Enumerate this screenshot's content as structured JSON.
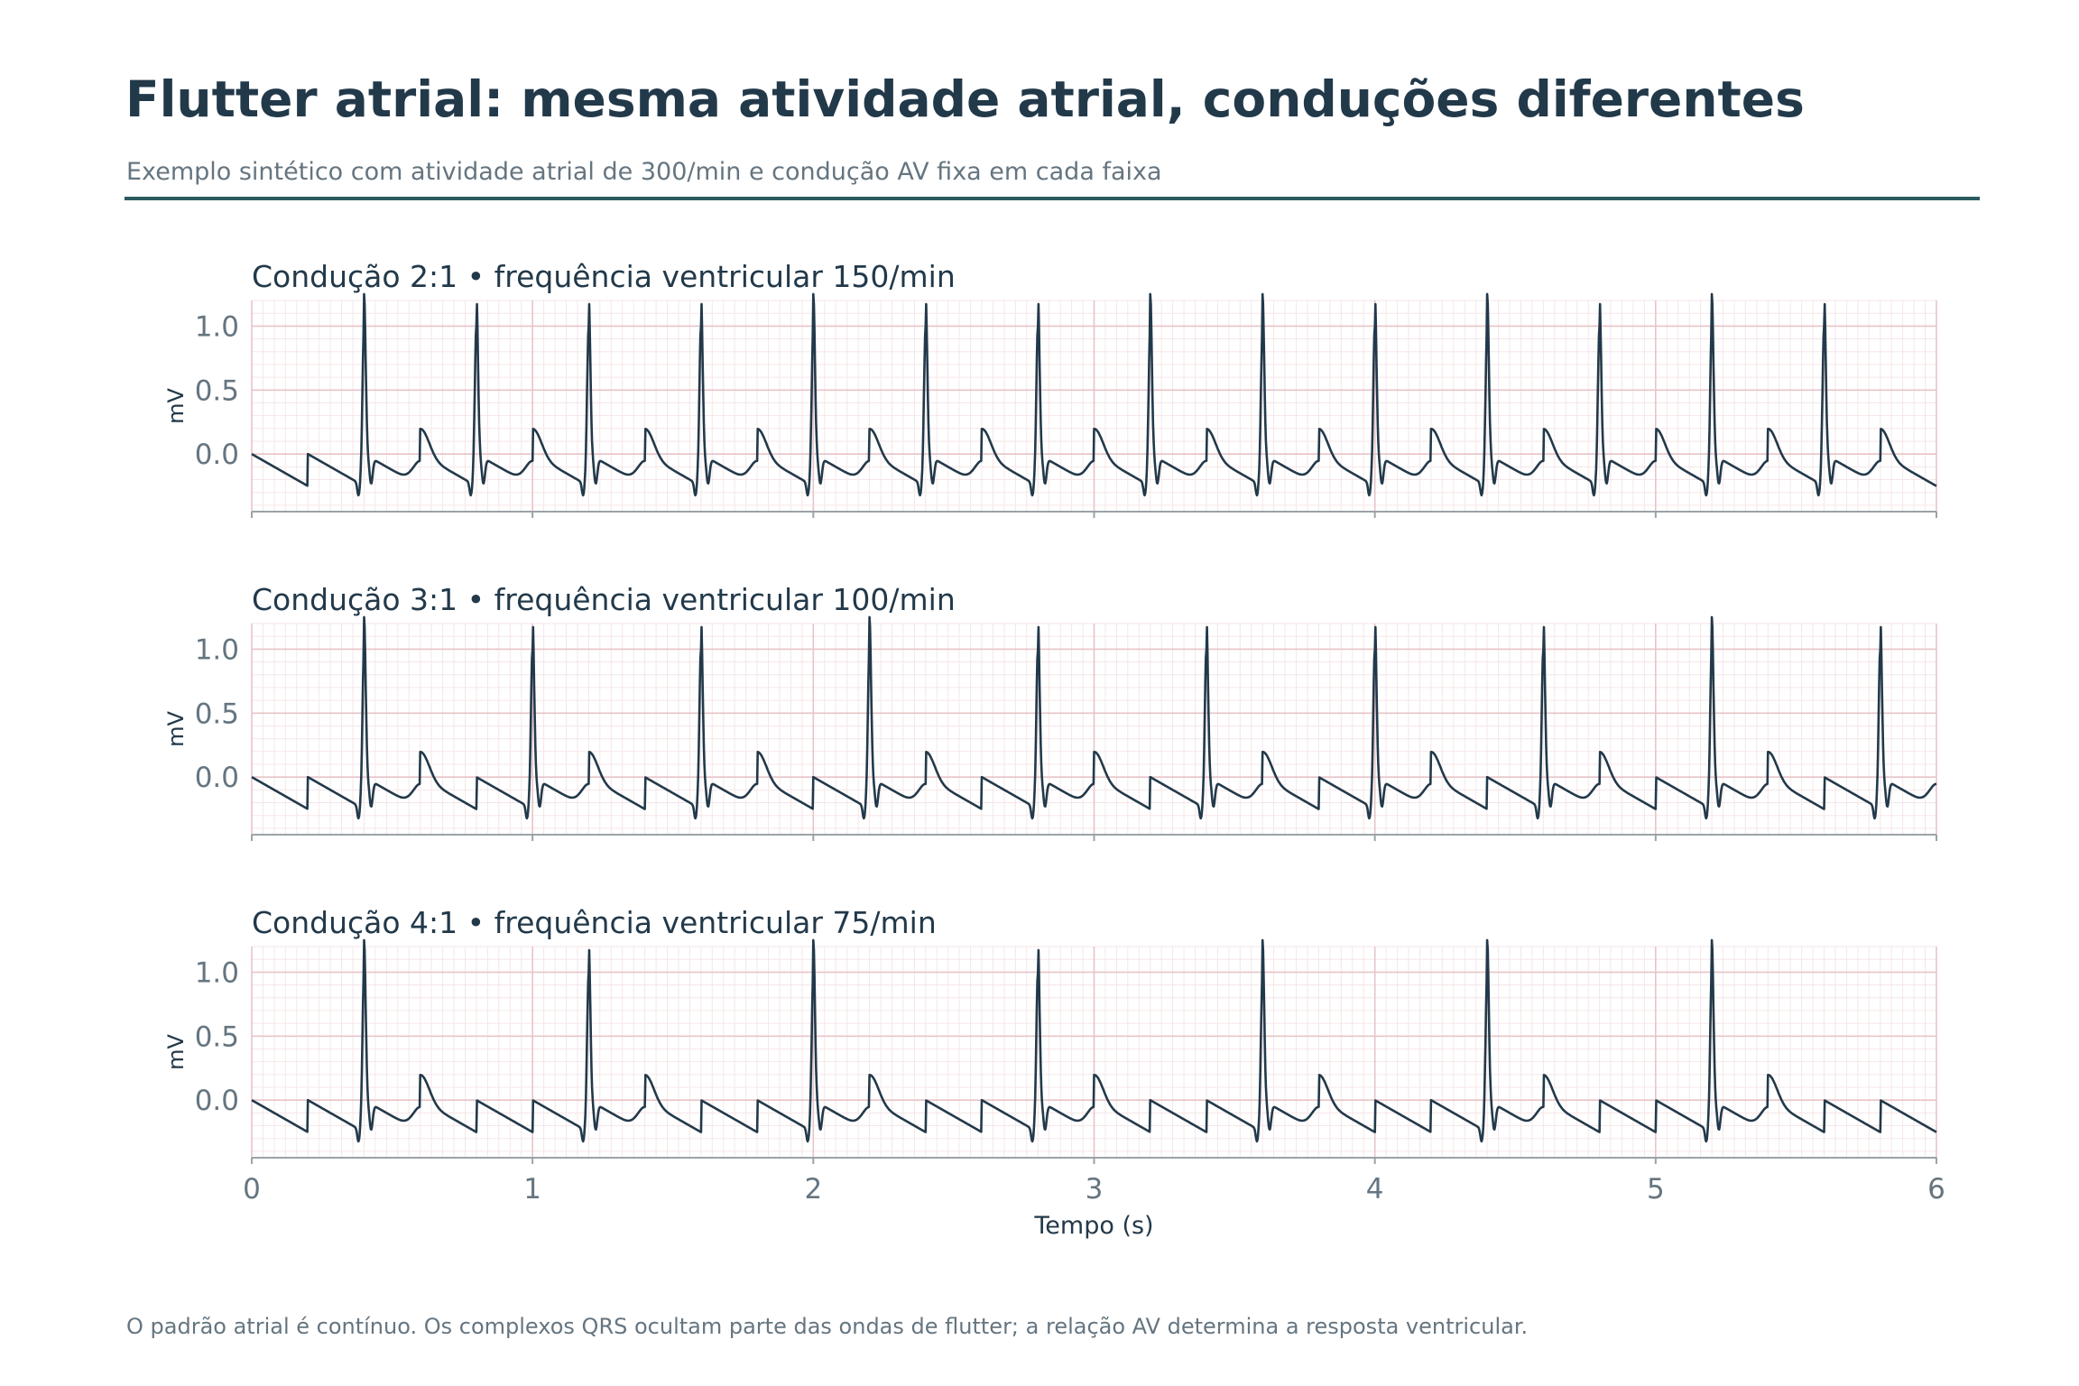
{
  "title": "Flutter atrial: mesma atividade atrial, conduções diferentes",
  "subtitle": "Exemplo sintético com atividade atrial de 300/min e condução AV fixa em cada faixa",
  "footer": "O padrão atrial é contínuo. Os complexos QRS ocultam parte das ondas de flutter; a relação AV determina a resposta ventricular.",
  "colors": {
    "trace": "#22394a",
    "major_grid": "#e8c4c8",
    "minor_grid": "#f6e6e8",
    "axis": "#9aa3a8",
    "tick_label": "#657580",
    "title_text": "#22394a",
    "rule": "#2b5a60"
  },
  "chart_data": [
    {
      "type": "line",
      "title": "Condução 2:1  •  frequência ventricular 150/min",
      "conduction": "2:1",
      "ventricular_rate_bpm": 150,
      "atrial_rate_bpm": 300,
      "ylabel": "mV",
      "xlim": [
        0,
        6
      ],
      "ylim": [
        -0.45,
        1.2
      ],
      "yticks": [
        "1.0",
        "0.5",
        "0.0"
      ],
      "qrs_times_s": [
        0.4,
        0.8,
        1.2,
        1.6,
        2.0,
        2.4,
        2.8,
        3.2,
        3.6,
        4.0,
        4.4,
        4.8,
        5.2,
        5.6
      ],
      "grid": true
    },
    {
      "type": "line",
      "title": "Condução 3:1  •  frequência ventricular 100/min",
      "conduction": "3:1",
      "ventricular_rate_bpm": 100,
      "atrial_rate_bpm": 300,
      "ylabel": "mV",
      "xlim": [
        0,
        6
      ],
      "ylim": [
        -0.45,
        1.2
      ],
      "yticks": [
        "1.0",
        "0.5",
        "0.0"
      ],
      "qrs_times_s": [
        0.4,
        1.0,
        1.6,
        2.2,
        2.8,
        3.4,
        4.0,
        4.6,
        5.2,
        5.8
      ],
      "grid": true
    },
    {
      "type": "line",
      "title": "Condução 4:1  •  frequência ventricular 75/min",
      "conduction": "4:1",
      "ventricular_rate_bpm": 75,
      "atrial_rate_bpm": 300,
      "ylabel": "mV",
      "xlim": [
        0,
        6
      ],
      "ylim": [
        -0.45,
        1.2
      ],
      "yticks": [
        "1.0",
        "0.5",
        "0.0"
      ],
      "qrs_times_s": [
        0.4,
        1.2,
        2.0,
        2.8,
        3.6,
        4.4,
        5.2
      ],
      "grid": true,
      "xlabel": "Tempo (s)",
      "xticks": [
        "0",
        "1",
        "2",
        "3",
        "4",
        "5",
        "6"
      ]
    }
  ]
}
